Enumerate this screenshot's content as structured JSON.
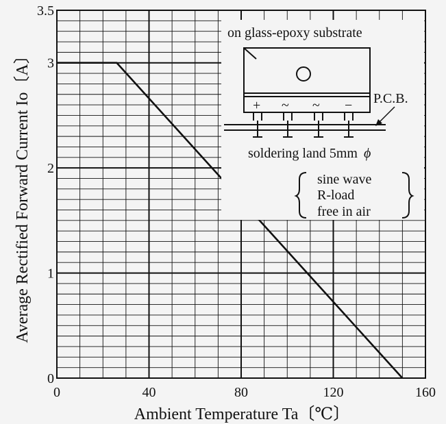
{
  "chart_data": {
    "type": "line",
    "xlabel": "Ambient Temperature Ta〔℃〕",
    "ylabel": "Average Rectified Forward Current Io〔A〕",
    "xlim": [
      0,
      160
    ],
    "ylim": [
      0,
      3.5
    ],
    "x_ticks": [
      "0",
      "40",
      "80",
      "120",
      "160"
    ],
    "y_ticks": [
      "0",
      "1",
      "2",
      "3",
      "3.5"
    ],
    "x_tick_values": [
      0,
      40,
      80,
      120,
      160
    ],
    "y_tick_values": [
      0,
      1,
      2,
      3,
      3.5
    ],
    "grid": true,
    "series": [
      {
        "x": [
          0,
          26,
          150
        ],
        "y": [
          3,
          3,
          0
        ],
        "color": "#111111"
      }
    ],
    "annotations": {
      "substrate": "on glass-epoxy substrate",
      "pcb": "P.C.B.",
      "land": "soldering land 5mm",
      "phi": "ϕ",
      "pin_labels": [
        "+",
        "~",
        "~",
        "−"
      ],
      "conditions": [
        "sine wave",
        "R-load",
        "free in air"
      ]
    }
  }
}
